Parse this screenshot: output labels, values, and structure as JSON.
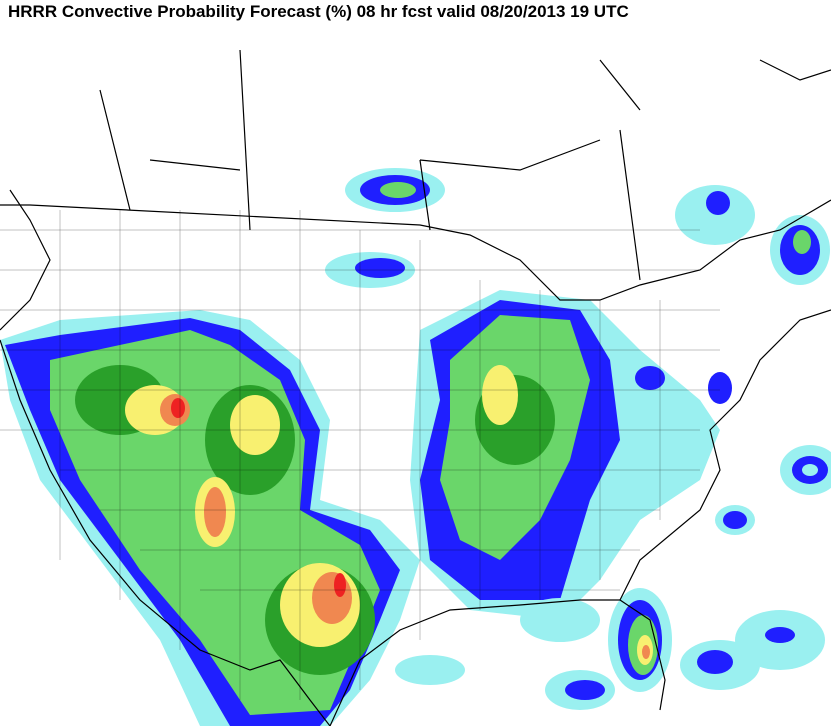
{
  "header": {
    "title": "HRRR Convective Probability Forecast (%) 08 hr fcst valid 08/20/2013 19 UTC"
  }
}
